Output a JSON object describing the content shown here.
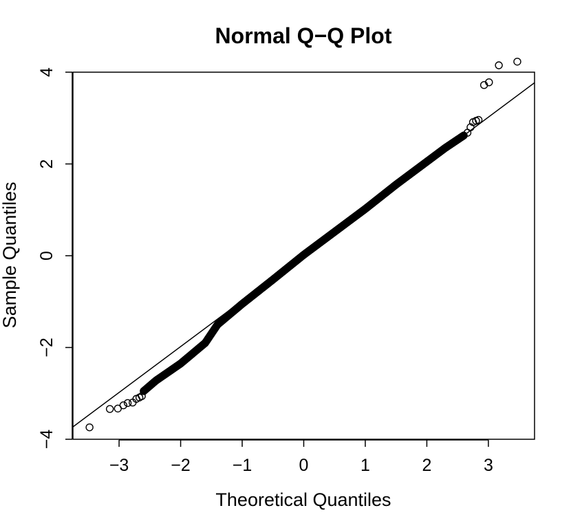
{
  "chart_data": {
    "type": "scatter",
    "title": "Normal Q−Q Plot",
    "xlabel": "Theoretical Quantiles",
    "ylabel": "Sample Quantiles",
    "xlim": [
      -3.75,
      3.75
    ],
    "ylim": [
      -4.0,
      4.0
    ],
    "x_ticks": [
      {
        "value": -3,
        "label": "−3"
      },
      {
        "value": -2,
        "label": "−2"
      },
      {
        "value": -1,
        "label": "−1"
      },
      {
        "value": 0,
        "label": "0"
      },
      {
        "value": 1,
        "label": "1"
      },
      {
        "value": 2,
        "label": "2"
      },
      {
        "value": 3,
        "label": "3"
      }
    ],
    "y_ticks": [
      {
        "value": -4,
        "label": "−4"
      },
      {
        "value": -2,
        "label": "−2"
      },
      {
        "value": 0,
        "label": "0"
      },
      {
        "value": 2,
        "label": "2"
      },
      {
        "value": 4,
        "label": "4"
      }
    ],
    "reference_line": {
      "intercept": 0.02,
      "slope": 1.0
    },
    "grid": false,
    "legend": "none",
    "outlier_points": [
      {
        "x": -3.48,
        "y": -3.74
      },
      {
        "x": -3.15,
        "y": -3.34
      },
      {
        "x": -3.02,
        "y": -3.33
      },
      {
        "x": -2.93,
        "y": -3.26
      },
      {
        "x": -2.86,
        "y": -3.21
      },
      {
        "x": -2.78,
        "y": -3.2
      },
      {
        "x": -2.72,
        "y": -3.12
      },
      {
        "x": -2.67,
        "y": -3.09
      },
      {
        "x": -2.63,
        "y": -3.06
      },
      {
        "x": 2.66,
        "y": 2.68
      },
      {
        "x": 2.71,
        "y": 2.8
      },
      {
        "x": 2.75,
        "y": 2.91
      },
      {
        "x": 2.8,
        "y": 2.94
      },
      {
        "x": 2.84,
        "y": 2.96
      },
      {
        "x": 2.93,
        "y": 3.72
      },
      {
        "x": 3.01,
        "y": 3.78
      },
      {
        "x": 3.17,
        "y": 4.15
      },
      {
        "x": 3.47,
        "y": 4.23
      }
    ],
    "dense_points_range": [
      -2.6,
      2.6
    ],
    "dense_points_count": 480,
    "dense_shape": [
      {
        "x": -2.6,
        "y": -2.95
      },
      {
        "x": -2.4,
        "y": -2.72
      },
      {
        "x": -2.0,
        "y": -2.35
      },
      {
        "x": -1.6,
        "y": -1.9
      },
      {
        "x": -1.4,
        "y": -1.5
      },
      {
        "x": -1.0,
        "y": -1.05
      },
      {
        "x": -0.5,
        "y": -0.52
      },
      {
        "x": 0.0,
        "y": 0.02
      },
      {
        "x": 0.5,
        "y": 0.52
      },
      {
        "x": 1.0,
        "y": 1.02
      },
      {
        "x": 1.5,
        "y": 1.55
      },
      {
        "x": 2.0,
        "y": 2.05
      },
      {
        "x": 2.3,
        "y": 2.35
      },
      {
        "x": 2.6,
        "y": 2.62
      }
    ]
  }
}
